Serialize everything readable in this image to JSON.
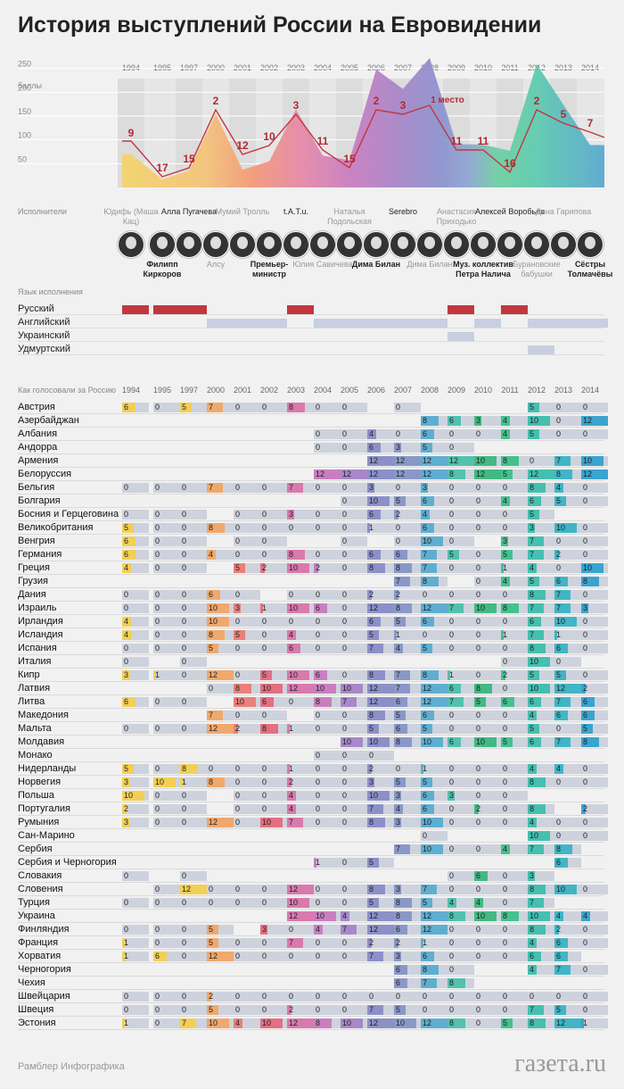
{
  "title": "История выступлений России на Евровидении",
  "years": [
    "1994",
    "1995",
    "1997",
    "2000",
    "2001",
    "2002",
    "2003",
    "2004",
    "2005",
    "2006",
    "2007",
    "2008",
    "2009",
    "2010",
    "2011",
    "2012",
    "2013",
    "2014"
  ],
  "chart_data": {
    "type": "area",
    "x": [
      "1994",
      "1995",
      "1997",
      "2000",
      "2001",
      "2002",
      "2003",
      "2004",
      "2005",
      "2006",
      "2007",
      "2008",
      "2009",
      "2010",
      "2011",
      "2012",
      "2013",
      "2014"
    ],
    "ylabel": "баллы",
    "yticks": [
      50,
      100,
      150,
      200,
      250
    ],
    "ylim": [
      0,
      300
    ],
    "series": [
      {
        "name": "баллы",
        "values": [
          70,
          17,
          35,
          155,
          37,
          55,
          164,
          67,
          57,
          248,
          207,
          272,
          91,
          90,
          77,
          259,
          174,
          89
        ]
      },
      {
        "name": "место",
        "values": [
          9,
          17,
          15,
          2,
          12,
          10,
          3,
          11,
          15,
          2,
          3,
          1,
          11,
          11,
          16,
          2,
          5,
          7
        ]
      }
    ],
    "annotations": [
      {
        "year": "2008",
        "text": "1 место"
      }
    ]
  },
  "performers_label": "Исполнители",
  "performers_top": [
    {
      "year_index": 0,
      "text": "Юдифь (Маша Кац)",
      "dark": false
    },
    {
      "year_index": 2,
      "text": "Алла Пугачева",
      "dark": true
    },
    {
      "year_index": 4,
      "text": "Мумий Тролль",
      "dark": false
    },
    {
      "year_index": 6,
      "text": "t.A.T.u.",
      "dark": true
    },
    {
      "year_index": 8,
      "text": "Наталья Подольская",
      "dark": false
    },
    {
      "year_index": 10,
      "text": "Serebro",
      "dark": true
    },
    {
      "year_index": 12,
      "text": "Анастасия Приходько",
      "dark": false
    },
    {
      "year_index": 14,
      "text": "Алексей Воробьев",
      "dark": true
    },
    {
      "year_index": 16,
      "text": "Дина Гарипова",
      "dark": false
    }
  ],
  "performers_bottom": [
    {
      "year_index": 1,
      "text": "Филипп Киркоров",
      "dark": true
    },
    {
      "year_index": 3,
      "text": "Алсу",
      "dark": false
    },
    {
      "year_index": 5,
      "text": "Премьер-министр",
      "dark": true
    },
    {
      "year_index": 7,
      "text": "Юлия Савичева",
      "dark": false
    },
    {
      "year_index": 9,
      "text": "Дима Билан",
      "dark": true
    },
    {
      "year_index": 11,
      "text": "Дима Билан",
      "dark": false
    },
    {
      "year_index": 13,
      "text": "Муз. коллектив Петра Налича",
      "dark": true
    },
    {
      "year_index": 15,
      "text": "Бурановские бабушки",
      "dark": false
    },
    {
      "year_index": 17,
      "text": "Сёстры Толмачёвы",
      "dark": true
    }
  ],
  "language_label": "Язык исполнения",
  "languages": [
    {
      "name": "Русский",
      "color": "#c1373f",
      "years": [
        0,
        1,
        2,
        6,
        12,
        14
      ]
    },
    {
      "name": "Английский",
      "color": "#c7cfe0",
      "years": [
        3,
        4,
        5,
        7,
        8,
        9,
        10,
        11,
        13,
        15,
        16,
        17
      ]
    },
    {
      "name": "Украинский",
      "color": "#c7cfe0",
      "years": [
        12
      ]
    },
    {
      "name": "Удмуртский",
      "color": "#c7cfe0",
      "years": [
        15
      ]
    }
  ],
  "votes_label": "Как голосовали за Россию",
  "votes": [
    {
      "c": "Австрия",
      "v": [
        6,
        0,
        5,
        7,
        0,
        0,
        8,
        0,
        0,
        null,
        0,
        null,
        null,
        null,
        null,
        5,
        0,
        0
      ]
    },
    {
      "c": "Азербайджан",
      "v": [
        null,
        null,
        null,
        null,
        null,
        null,
        null,
        null,
        null,
        null,
        null,
        8,
        6,
        3,
        4,
        10,
        0,
        12
      ]
    },
    {
      "c": "Албания",
      "v": [
        null,
        null,
        null,
        null,
        null,
        null,
        null,
        0,
        0,
        4,
        0,
        6,
        0,
        0,
        4,
        5,
        0,
        0
      ]
    },
    {
      "c": "Андорра",
      "v": [
        null,
        null,
        null,
        null,
        null,
        null,
        null,
        0,
        0,
        6,
        3,
        5,
        0,
        null,
        null,
        null,
        null,
        null
      ]
    },
    {
      "c": "Армения",
      "v": [
        null,
        null,
        null,
        null,
        null,
        null,
        null,
        null,
        null,
        12,
        12,
        12,
        12,
        10,
        8,
        0,
        7,
        10
      ]
    },
    {
      "c": "Белоруссия",
      "v": [
        null,
        null,
        null,
        null,
        null,
        null,
        null,
        12,
        12,
        12,
        12,
        12,
        8,
        12,
        5,
        12,
        8,
        12
      ]
    },
    {
      "c": "Бельгия",
      "v": [
        0,
        0,
        0,
        7,
        0,
        0,
        7,
        0,
        0,
        3,
        0,
        3,
        0,
        0,
        0,
        8,
        4,
        0
      ]
    },
    {
      "c": "Болгария",
      "v": [
        null,
        null,
        null,
        null,
        null,
        null,
        null,
        null,
        0,
        10,
        5,
        6,
        0,
        0,
        4,
        6,
        5,
        0
      ]
    },
    {
      "c": "Босния и Герцеговина",
      "v": [
        0,
        0,
        0,
        null,
        0,
        0,
        3,
        0,
        0,
        6,
        2,
        4,
        0,
        0,
        0,
        5,
        null,
        null
      ]
    },
    {
      "c": "Великобритания",
      "v": [
        5,
        0,
        0,
        8,
        0,
        0,
        0,
        0,
        0,
        1,
        0,
        6,
        0,
        0,
        0,
        3,
        10,
        0
      ]
    },
    {
      "c": "Венгрия",
      "v": [
        6,
        0,
        0,
        null,
        0,
        0,
        null,
        null,
        0,
        null,
        0,
        10,
        0,
        null,
        3,
        7,
        0,
        0
      ]
    },
    {
      "c": "Германия",
      "v": [
        6,
        0,
        0,
        4,
        0,
        0,
        8,
        0,
        0,
        6,
        6,
        7,
        5,
        0,
        5,
        7,
        2,
        0
      ]
    },
    {
      "c": "Греция",
      "v": [
        4,
        0,
        0,
        null,
        5,
        2,
        10,
        2,
        0,
        8,
        8,
        7,
        0,
        0,
        1,
        4,
        0,
        10
      ]
    },
    {
      "c": "Грузия",
      "v": [
        null,
        null,
        null,
        null,
        null,
        null,
        null,
        null,
        null,
        null,
        7,
        8,
        null,
        0,
        4,
        5,
        6,
        8
      ]
    },
    {
      "c": "Дания",
      "v": [
        0,
        0,
        0,
        6,
        0,
        null,
        0,
        0,
        0,
        2,
        2,
        0,
        0,
        0,
        0,
        8,
        7,
        0
      ]
    },
    {
      "c": "Израиль",
      "v": [
        0,
        0,
        0,
        10,
        3,
        1,
        10,
        6,
        0,
        12,
        8,
        12,
        7,
        10,
        8,
        7,
        7,
        3
      ]
    },
    {
      "c": "Ирландия",
      "v": [
        4,
        0,
        0,
        10,
        0,
        0,
        0,
        0,
        0,
        6,
        5,
        6,
        0,
        0,
        0,
        6,
        10,
        0
      ]
    },
    {
      "c": "Исландия",
      "v": [
        4,
        0,
        0,
        8,
        5,
        0,
        4,
        0,
        0,
        5,
        1,
        0,
        0,
        0,
        1,
        7,
        1,
        0
      ]
    },
    {
      "c": "Испания",
      "v": [
        0,
        0,
        0,
        5,
        0,
        0,
        6,
        0,
        0,
        7,
        4,
        5,
        0,
        0,
        0,
        8,
        6,
        0
      ]
    },
    {
      "c": "Италия",
      "v": [
        0,
        null,
        0,
        null,
        null,
        null,
        null,
        null,
        null,
        null,
        null,
        null,
        null,
        null,
        0,
        10,
        0,
        null
      ]
    },
    {
      "c": "Кипр",
      "v": [
        3,
        1,
        0,
        12,
        0,
        5,
        10,
        6,
        0,
        8,
        7,
        8,
        1,
        0,
        2,
        5,
        5,
        0
      ]
    },
    {
      "c": "Латвия",
      "v": [
        null,
        null,
        null,
        0,
        8,
        10,
        12,
        10,
        10,
        12,
        7,
        12,
        6,
        8,
        0,
        10,
        12,
        2
      ]
    },
    {
      "c": "Литва",
      "v": [
        6,
        0,
        0,
        null,
        10,
        6,
        0,
        8,
        7,
        12,
        6,
        12,
        7,
        5,
        6,
        6,
        7,
        6
      ]
    },
    {
      "c": "Македония",
      "v": [
        null,
        null,
        null,
        7,
        0,
        0,
        null,
        0,
        0,
        8,
        5,
        6,
        0,
        0,
        0,
        4,
        6,
        6
      ]
    },
    {
      "c": "Мальта",
      "v": [
        0,
        0,
        0,
        12,
        2,
        8,
        1,
        0,
        0,
        5,
        6,
        5,
        0,
        0,
        0,
        5,
        0,
        5
      ]
    },
    {
      "c": "Молдавия",
      "v": [
        null,
        null,
        null,
        null,
        null,
        null,
        null,
        null,
        10,
        10,
        8,
        10,
        6,
        10,
        5,
        6,
        7,
        8
      ]
    },
    {
      "c": "Монако",
      "v": [
        null,
        null,
        null,
        null,
        null,
        null,
        null,
        0,
        0,
        0,
        null,
        null,
        null,
        null,
        null,
        null,
        null,
        null
      ]
    },
    {
      "c": "Нидерланды",
      "v": [
        5,
        0,
        8,
        0,
        0,
        0,
        1,
        0,
        0,
        2,
        0,
        1,
        0,
        0,
        0,
        4,
        4,
        0
      ]
    },
    {
      "c": "Норвегия",
      "v": [
        3,
        10,
        1,
        8,
        0,
        0,
        2,
        0,
        0,
        3,
        5,
        5,
        0,
        0,
        0,
        8,
        0,
        0
      ]
    },
    {
      "c": "Польша",
      "v": [
        10,
        0,
        0,
        null,
        0,
        0,
        4,
        0,
        0,
        10,
        3,
        6,
        3,
        0,
        0,
        null,
        null,
        null
      ]
    },
    {
      "c": "Португалия",
      "v": [
        2,
        0,
        0,
        null,
        0,
        0,
        4,
        0,
        0,
        7,
        4,
        6,
        0,
        2,
        0,
        8,
        null,
        2
      ]
    },
    {
      "c": "Румыния",
      "v": [
        3,
        0,
        0,
        12,
        0,
        10,
        7,
        0,
        0,
        8,
        3,
        10,
        0,
        0,
        0,
        4,
        0,
        0
      ]
    },
    {
      "c": "Сан-Марино",
      "v": [
        null,
        null,
        null,
        null,
        null,
        null,
        null,
        null,
        null,
        null,
        null,
        0,
        null,
        null,
        null,
        10,
        0,
        0
      ]
    },
    {
      "c": "Сербия",
      "v": [
        null,
        null,
        null,
        null,
        null,
        null,
        null,
        null,
        null,
        null,
        7,
        10,
        0,
        0,
        4,
        7,
        8,
        null
      ]
    },
    {
      "c": "Сербия и Черногория",
      "v": [
        null,
        null,
        null,
        null,
        null,
        null,
        null,
        1,
        0,
        5,
        null,
        null,
        null,
        null,
        null,
        null,
        6,
        null
      ]
    },
    {
      "c": "Словакия",
      "v": [
        0,
        null,
        0,
        null,
        null,
        null,
        null,
        null,
        null,
        null,
        null,
        null,
        0,
        6,
        0,
        3,
        null,
        null
      ]
    },
    {
      "c": "Словения",
      "v": [
        null,
        0,
        12,
        0,
        0,
        0,
        12,
        0,
        0,
        8,
        3,
        7,
        0,
        0,
        0,
        8,
        10,
        0
      ]
    },
    {
      "c": "Турция",
      "v": [
        0,
        0,
        0,
        0,
        0,
        0,
        10,
        0,
        0,
        5,
        8,
        5,
        4,
        4,
        0,
        7,
        null,
        null
      ]
    },
    {
      "c": "Украина",
      "v": [
        null,
        null,
        null,
        null,
        null,
        null,
        12,
        10,
        4,
        12,
        8,
        12,
        8,
        10,
        8,
        10,
        4,
        4
      ]
    },
    {
      "c": "Финляндия",
      "v": [
        0,
        0,
        0,
        5,
        null,
        3,
        0,
        4,
        7,
        12,
        6,
        12,
        0,
        0,
        0,
        8,
        2,
        0
      ]
    },
    {
      "c": "Франция",
      "v": [
        1,
        0,
        0,
        5,
        0,
        0,
        7,
        0,
        0,
        2,
        2,
        1,
        0,
        0,
        0,
        4,
        6,
        0
      ]
    },
    {
      "c": "Хорватия",
      "v": [
        1,
        6,
        0,
        12,
        0,
        0,
        0,
        0,
        0,
        7,
        3,
        6,
        0,
        0,
        0,
        6,
        6,
        null
      ]
    },
    {
      "c": "Черногория",
      "v": [
        null,
        null,
        null,
        null,
        null,
        null,
        null,
        null,
        null,
        null,
        6,
        8,
        0,
        null,
        null,
        4,
        7,
        0
      ]
    },
    {
      "c": "Чехия",
      "v": [
        null,
        null,
        null,
        null,
        null,
        null,
        null,
        null,
        null,
        null,
        6,
        7,
        8,
        null,
        null,
        null,
        null,
        null
      ]
    },
    {
      "c": "Швейцария",
      "v": [
        0,
        0,
        0,
        2,
        0,
        0,
        0,
        0,
        0,
        0,
        0,
        0,
        0,
        0,
        0,
        0,
        0,
        0
      ]
    },
    {
      "c": "Швеция",
      "v": [
        0,
        0,
        0,
        5,
        0,
        0,
        2,
        0,
        0,
        7,
        5,
        0,
        0,
        0,
        0,
        7,
        5,
        0
      ]
    },
    {
      "c": "Эстония",
      "v": [
        1,
        0,
        7,
        10,
        4,
        10,
        12,
        8,
        10,
        12,
        10,
        12,
        8,
        0,
        5,
        8,
        12,
        1
      ]
    }
  ],
  "footer_left": "Рамблер Инфографика",
  "footer_right": "газета.ru"
}
